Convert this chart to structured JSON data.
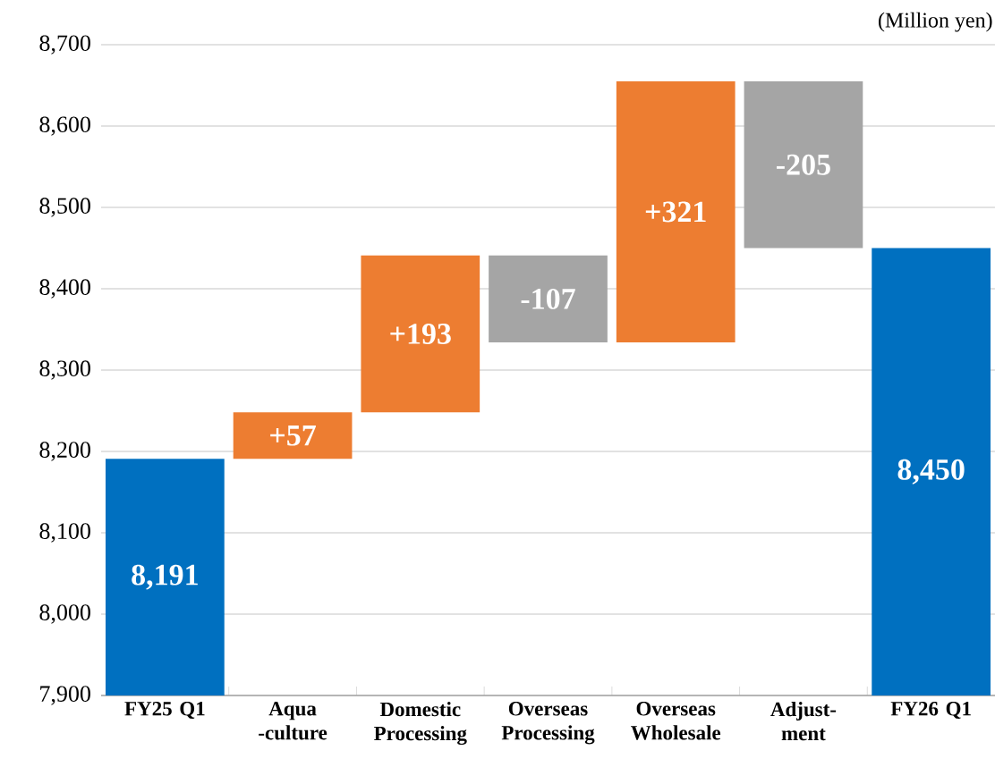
{
  "chart_data": {
    "type": "bar",
    "categories": [
      "FY25 Q1",
      "Aqua -culture",
      "Domestic Processing",
      "Overseas Processing",
      "Overseas Wholesale",
      "Adjust- ment",
      "FY26 Q1"
    ],
    "values": [
      8191,
      57,
      193,
      -107,
      321,
      -205,
      8450
    ],
    "base": [
      null,
      8191,
      8248,
      8441,
      8334,
      8655,
      null
    ],
    "colors": [
      "#0070c0",
      "#ed7d31",
      "#ed7d31",
      "#a5a5a5",
      "#ed7d31",
      "#a5a5a5",
      "#0070c0"
    ],
    "value_labels": [
      "8,191",
      "+57",
      "+193",
      "-107",
      "+321",
      "-205",
      "8,450"
    ],
    "ylim": [
      7900,
      8700
    ],
    "yticks": [
      {
        "value": 7900,
        "label": "7,900"
      },
      {
        "value": 8000,
        "label": "8,000"
      },
      {
        "value": 8100,
        "label": "8,100"
      },
      {
        "value": 8200,
        "label": "8,200"
      },
      {
        "value": 8300,
        "label": "8,300"
      },
      {
        "value": 8400,
        "label": "8,400"
      },
      {
        "value": 8500,
        "label": "8,500"
      },
      {
        "value": 8600,
        "label": "8,600"
      },
      {
        "value": 8700,
        "label": "8,700"
      }
    ],
    "grid": "y",
    "annotations": [
      "(Million yen)"
    ]
  }
}
